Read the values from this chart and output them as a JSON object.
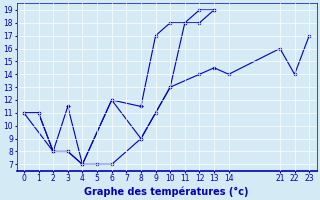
{
  "title": "Graphe des températures (°c)",
  "background_color": "#d4eaf5",
  "line_color": "#0000bb",
  "grid_color": "#ffffff",
  "xlim": [
    -0.5,
    23.5
  ],
  "ylim": [
    6.5,
    19.5
  ],
  "xtick_vals": [
    0,
    1,
    2,
    3,
    4,
    5,
    6,
    7,
    8,
    9,
    10,
    11,
    12,
    13,
    14,
    21,
    22,
    23
  ],
  "ytick_vals": [
    7,
    8,
    9,
    10,
    11,
    12,
    13,
    14,
    15,
    16,
    17,
    18,
    19
  ],
  "lines": [
    {
      "x": [
        0,
        2,
        3,
        4,
        5,
        6,
        8,
        10,
        12,
        13,
        14,
        21,
        22,
        23
      ],
      "y": [
        11,
        8,
        8,
        7,
        7,
        7,
        9,
        13,
        14,
        14.5,
        14,
        16,
        14,
        17
      ]
    },
    {
      "x": [
        0,
        1,
        2,
        3,
        4,
        6,
        8,
        9,
        10,
        11,
        12,
        13
      ],
      "y": [
        11,
        11,
        8,
        11.5,
        7,
        12,
        9,
        11,
        13,
        18,
        18,
        19
      ]
    },
    {
      "x": [
        0,
        1,
        2,
        3,
        4,
        6,
        8,
        9,
        10,
        11,
        12,
        13
      ],
      "y": [
        11,
        11,
        8,
        8,
        7,
        12,
        11.5,
        17,
        18,
        18,
        19,
        19
      ]
    }
  ],
  "xlabel_fontsize": 7,
  "tick_fontsize": 5.5
}
